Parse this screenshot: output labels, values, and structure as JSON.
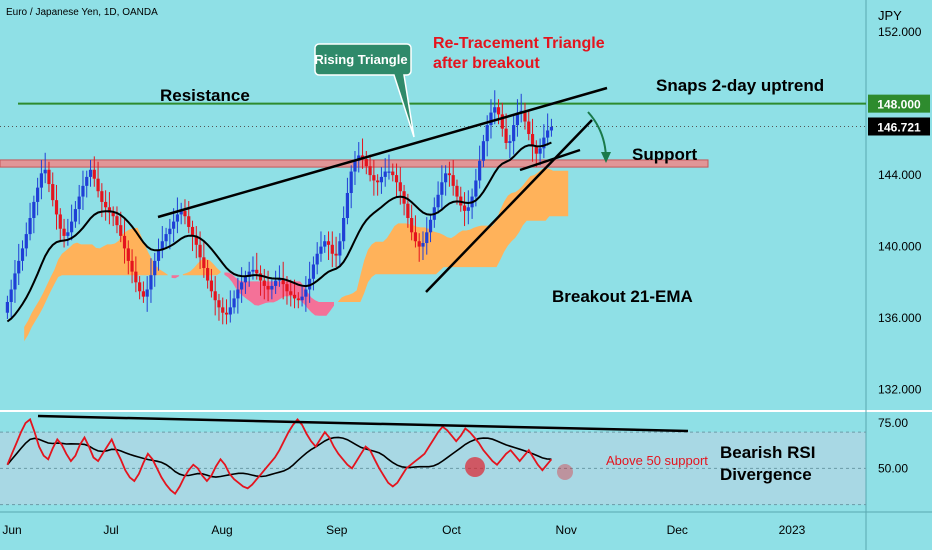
{
  "chart_data": {
    "type": "candlestick",
    "title": "Euro / Japanese Yen, 1D, OANDA",
    "currency_label": "JPY",
    "price_ticks": [
      "152.000",
      "148.000",
      "144.000",
      "140.000",
      "136.000",
      "132.000"
    ],
    "price_tick_values": [
      152,
      148,
      144,
      140,
      136,
      132
    ],
    "price_range": [
      130.8,
      153.8
    ],
    "rsi_ticks": [
      "75.00",
      "50.00"
    ],
    "rsi_tick_values": [
      75,
      50
    ],
    "rsi_range": [
      27,
      80
    ],
    "time_labels": [
      "Jun",
      "Jul",
      "Aug",
      "Sep",
      "Oct",
      "Nov",
      "Dec",
      "2023"
    ],
    "time_label_day_index": [
      0,
      28,
      58,
      89,
      120,
      151,
      181,
      212
    ],
    "day_range": [
      -2,
      232
    ],
    "resistance": {
      "label": "Resistance",
      "value": 148.0,
      "value_text": "148.000",
      "color": "#2e8b2e"
    },
    "support": {
      "label": "Support",
      "low": 144.45,
      "high": 144.85,
      "color": "#f08a8a"
    },
    "last_price": {
      "value": 146.721,
      "value_text": "146.721"
    },
    "colors": {
      "up": "#1f3fd6",
      "down": "#e4141e",
      "ema": "#000000",
      "rsi": "#e4141e",
      "rsi_ma": "#000000",
      "cloud_bull": "#ffb25a",
      "cloud_bear": "#f47198",
      "rsi_band": "#a8d8e4"
    },
    "candles_daily_close": [
      136.9,
      137.6,
      138.5,
      139.2,
      139.9,
      140.7,
      141.6,
      142.5,
      143.3,
      144.1,
      144.3,
      143.5,
      142.6,
      141.8,
      141.0,
      140.6,
      140.8,
      141.4,
      142.1,
      142.8,
      143.4,
      143.9,
      144.3,
      143.8,
      143.1,
      142.5,
      142.2,
      141.9,
      141.7,
      141.2,
      140.6,
      139.9,
      139.2,
      138.6,
      138.0,
      137.5,
      137.2,
      137.6,
      138.4,
      139.2,
      139.8,
      140.3,
      140.7,
      141.0,
      141.4,
      141.8,
      142.0,
      141.7,
      141.1,
      140.6,
      140.1,
      139.4,
      138.8,
      138.1,
      137.5,
      137.0,
      136.6,
      136.3,
      136.2,
      136.6,
      137.1,
      137.6,
      138.0,
      138.3,
      138.6,
      138.7,
      138.5,
      138.1,
      137.8,
      137.6,
      137.8,
      138.1,
      138.2,
      137.9,
      137.5,
      137.3,
      137.1,
      137.0,
      137.2,
      137.6,
      138.2,
      139.0,
      139.6,
      140.0,
      140.3,
      140.1,
      139.6,
      139.5,
      140.3,
      141.6,
      143.0,
      144.2,
      144.8,
      145.1,
      144.9,
      144.5,
      144.0,
      143.7,
      143.6,
      143.9,
      144.2,
      144.2,
      144.0,
      143.6,
      143.1,
      142.4,
      141.6,
      140.8,
      140.3,
      140.0,
      140.2,
      140.8,
      141.5,
      142.2,
      142.9,
      143.6,
      144.1,
      144.0,
      143.4,
      142.8,
      142.3,
      142.0,
      142.2,
      142.8,
      143.7,
      144.8,
      145.9,
      146.8,
      147.5,
      147.8,
      147.4,
      146.6,
      145.8,
      145.9,
      146.8,
      147.5,
      147.6,
      147.0,
      146.3,
      145.6,
      145.2,
      145.5,
      146.1,
      146.5,
      146.7
    ],
    "rsi_values": [
      52,
      58,
      64,
      70,
      75,
      77,
      70,
      62,
      57,
      55,
      61,
      66,
      63,
      58,
      54,
      57,
      63,
      67,
      62,
      56,
      54,
      58,
      62,
      66,
      60,
      55,
      49,
      45,
      43,
      47,
      53,
      58,
      55,
      50,
      45,
      41,
      38,
      36,
      40,
      45,
      49,
      52,
      50,
      46,
      43,
      46,
      51,
      55,
      52,
      47,
      44,
      42,
      40,
      39,
      41,
      44,
      47,
      50,
      53,
      56,
      60,
      65,
      70,
      74,
      77,
      74,
      69,
      65,
      62,
      66,
      70,
      67,
      62,
      58,
      55,
      52,
      50,
      54,
      58,
      62,
      60,
      55,
      50,
      46,
      42,
      40,
      42,
      46,
      50,
      52,
      54,
      56,
      58,
      62,
      66,
      70,
      73,
      71,
      68,
      65,
      68,
      72,
      70,
      67,
      64,
      60,
      57,
      54,
      52,
      55,
      58,
      60,
      57,
      54,
      57,
      60,
      56,
      52,
      49,
      52,
      55
    ]
  },
  "annotations": {
    "rising_triangle": "Rising Triangle",
    "retracement": [
      "Re-Tracement Triangle",
      "after breakout"
    ],
    "snaps": "Snaps 2-day uptrend",
    "breakout_ema": "Breakout 21-EMA",
    "above50": "Above 50 support",
    "bearish_rsi": [
      "Bearish RSI",
      "Divergence"
    ]
  }
}
